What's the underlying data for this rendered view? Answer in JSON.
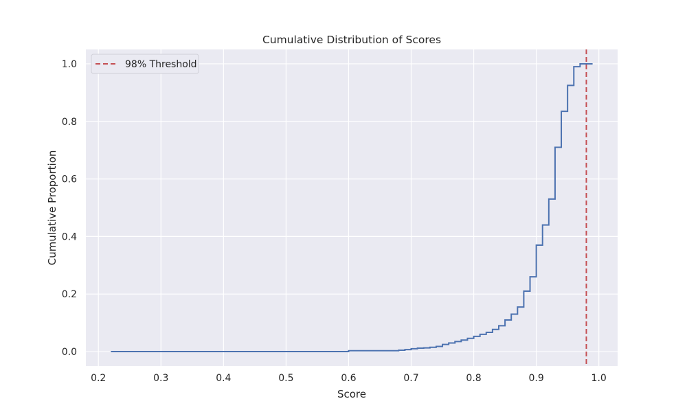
{
  "chart_data": {
    "type": "line",
    "title": "Cumulative Distribution of Scores",
    "xlabel": "Score",
    "ylabel": "Cumulative Proportion",
    "xlim": [
      0.18,
      1.03
    ],
    "ylim": [
      -0.05,
      1.05
    ],
    "xticks": [
      0.2,
      0.3,
      0.4,
      0.5,
      0.6,
      0.7,
      0.8,
      0.9,
      1.0
    ],
    "xtick_labels": [
      "0.2",
      "0.3",
      "0.4",
      "0.5",
      "0.6",
      "0.7",
      "0.8",
      "0.9",
      "1.0"
    ],
    "yticks": [
      0.0,
      0.2,
      0.4,
      0.6,
      0.8,
      1.0
    ],
    "ytick_labels": [
      "0.0",
      "0.2",
      "0.4",
      "0.6",
      "0.8",
      "1.0"
    ],
    "grid": true,
    "legend_position": "top-left",
    "background_color": "#eaeaf2",
    "series": [
      {
        "step": "post",
        "color": "#4c72b0",
        "x": [
          0.22,
          0.6,
          0.68,
          0.69,
          0.7,
          0.71,
          0.72,
          0.73,
          0.74,
          0.75,
          0.76,
          0.77,
          0.78,
          0.79,
          0.8,
          0.81,
          0.82,
          0.83,
          0.84,
          0.85,
          0.86,
          0.87,
          0.88,
          0.89,
          0.9,
          0.91,
          0.92,
          0.93,
          0.94,
          0.95,
          0.96,
          0.97,
          0.98,
          0.99
        ],
        "y": [
          0.0,
          0.003,
          0.005,
          0.007,
          0.01,
          0.012,
          0.013,
          0.015,
          0.018,
          0.025,
          0.03,
          0.035,
          0.04,
          0.046,
          0.053,
          0.06,
          0.067,
          0.077,
          0.09,
          0.11,
          0.13,
          0.155,
          0.21,
          0.26,
          0.37,
          0.44,
          0.53,
          0.71,
          0.835,
          0.925,
          0.99,
          1.0,
          1.0,
          1.0
        ]
      }
    ],
    "threshold": {
      "name": "98% Threshold",
      "x": 0.98,
      "color": "#c44e52"
    }
  }
}
